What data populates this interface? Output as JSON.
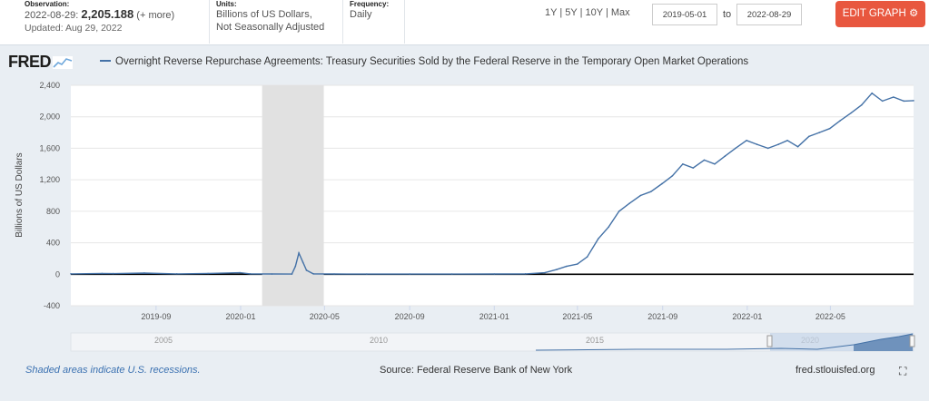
{
  "observation": {
    "label": "Observation:",
    "date": "2022-08-29:",
    "value": "2,205.188",
    "more": "(+ more)",
    "updated": "Updated: Aug 29, 2022"
  },
  "units": {
    "label": "Units:",
    "line1": "Billions of US Dollars,",
    "line2": "Not Seasonally Adjusted"
  },
  "frequency": {
    "label": "Frequency:",
    "value": "Daily"
  },
  "ranges": [
    "1Y",
    "5Y",
    "10Y",
    "Max"
  ],
  "range_sep": "|",
  "date_from": "2019-05-01",
  "date_to": "2022-08-29",
  "to_label": "to",
  "edit_button": "EDIT GRAPH",
  "logo": "FRED",
  "footer": {
    "recession_note": "Shaded areas indicate U.S. recessions.",
    "source": "Source: Federal Reserve Bank of New York",
    "site": "fred.stlouisfed.org"
  },
  "colors": {
    "line": "#4572a7",
    "recession": "#e1e1e1",
    "button": "#e8573f",
    "link": "#3b71b1"
  },
  "chart_data": {
    "type": "line",
    "title": "Overnight Reverse Repurchase Agreements: Treasury Securities Sold by the Federal Reserve in the Temporary Open Market Operations",
    "ylabel": "Billions of US Dollars",
    "xlabel": "",
    "ylim": [
      -400,
      2400
    ],
    "yticks": [
      "-400",
      "0",
      "400",
      "800",
      "1,200",
      "1,600",
      "2,000",
      "2,400"
    ],
    "xlim": [
      "2019-05-01",
      "2022-08-29"
    ],
    "xticks": [
      "2019-09",
      "2020-01",
      "2020-05",
      "2020-09",
      "2021-01",
      "2021-05",
      "2021-09",
      "2022-01",
      "2022-05"
    ],
    "recession": [
      "2020-02-01",
      "2020-04-30"
    ],
    "grid": true,
    "navigator_labels": [
      "2005",
      "2010",
      "2015",
      "2020"
    ],
    "series": [
      {
        "name": "Overnight Reverse Repurchase Agreements: Treasury Securities Sold by the Federal Reserve in the Temporary Open Market Operations",
        "x": [
          "2019-05-01",
          "2019-06-15",
          "2019-07-01",
          "2019-08-15",
          "2019-10-01",
          "2019-11-15",
          "2019-12-31",
          "2020-01-15",
          "2020-02-15",
          "2020-03-15",
          "2020-03-20",
          "2020-03-25",
          "2020-03-31",
          "2020-04-05",
          "2020-04-15",
          "2020-05-15",
          "2020-07-01",
          "2020-09-01",
          "2020-11-01",
          "2021-01-01",
          "2021-02-15",
          "2021-03-15",
          "2021-04-01",
          "2021-04-15",
          "2021-05-01",
          "2021-05-15",
          "2021-05-31",
          "2021-06-15",
          "2021-06-30",
          "2021-07-15",
          "2021-07-31",
          "2021-08-15",
          "2021-08-31",
          "2021-09-15",
          "2021-09-30",
          "2021-10-15",
          "2021-10-31",
          "2021-11-15",
          "2021-11-30",
          "2021-12-15",
          "2021-12-31",
          "2022-01-15",
          "2022-01-31",
          "2022-02-15",
          "2022-02-28",
          "2022-03-15",
          "2022-03-31",
          "2022-04-15",
          "2022-04-30",
          "2022-05-15",
          "2022-05-31",
          "2022-06-15",
          "2022-06-30",
          "2022-07-15",
          "2022-07-31",
          "2022-08-15",
          "2022-08-29"
        ],
        "values": [
          5,
          10,
          8,
          15,
          5,
          10,
          20,
          5,
          3,
          2,
          100,
          270,
          150,
          50,
          5,
          3,
          2,
          2,
          2,
          3,
          5,
          20,
          60,
          100,
          130,
          220,
          450,
          600,
          800,
          900,
          1000,
          1050,
          1150,
          1250,
          1400,
          1350,
          1450,
          1400,
          1500,
          1600,
          1700,
          1650,
          1600,
          1650,
          1700,
          1620,
          1750,
          1800,
          1850,
          1950,
          2050,
          2150,
          2300,
          2200,
          2250,
          2200,
          2205
        ]
      }
    ]
  }
}
